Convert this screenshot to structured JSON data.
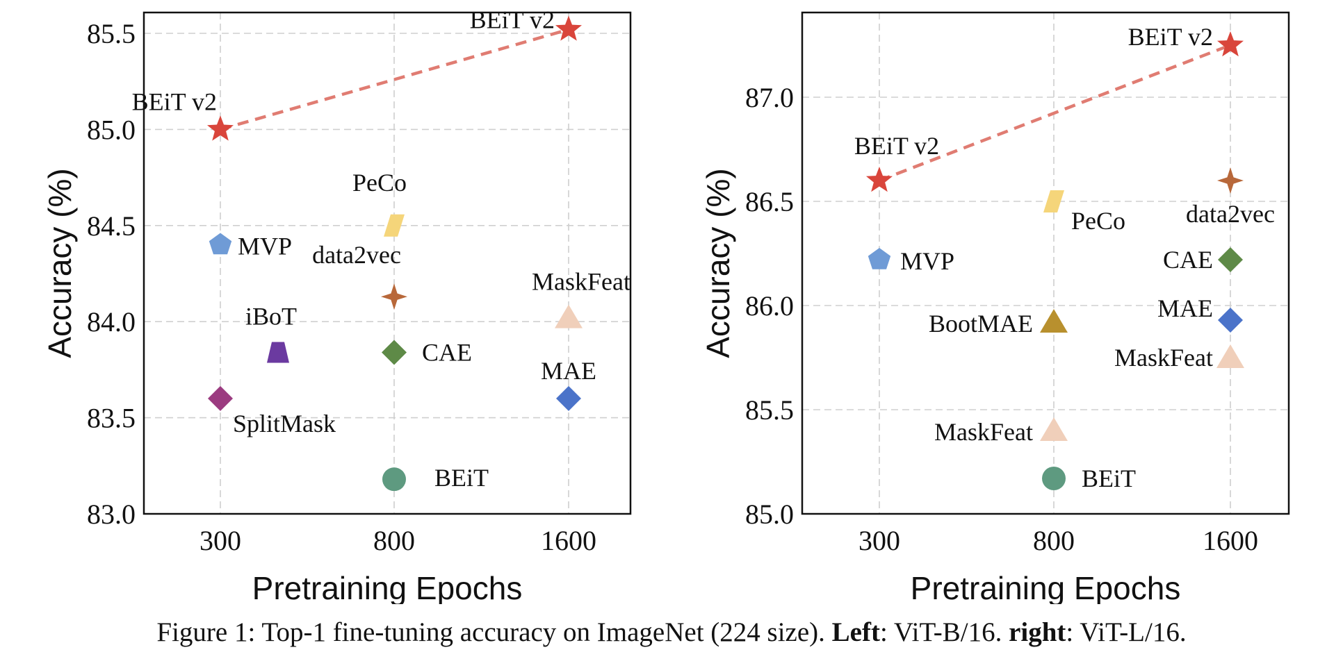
{
  "chart_data": [
    {
      "type": "scatter",
      "xlabel": "Pretraining Epochs",
      "ylabel": "Accuracy (%)",
      "x_ticks": [
        300,
        800,
        1600
      ],
      "y_ticks": [
        "83.0",
        "83.5",
        "84.0",
        "84.5",
        "85.0",
        "85.5"
      ],
      "ylim": [
        83.0,
        85.7
      ],
      "x_scale": "categorical-spaced",
      "grid": true,
      "trend_line": {
        "from": "BEiT v2 @300",
        "to": "BEiT v2 @1600",
        "color": "#e07c72",
        "style": "dashed"
      },
      "points": [
        {
          "label": "BEiT v2",
          "x": 300,
          "y": 85.0,
          "marker": "star",
          "color": "#d9453b"
        },
        {
          "label": "BEiT v2",
          "x": 1600,
          "y": 85.52,
          "marker": "star",
          "color": "#d9453b"
        },
        {
          "label": "MVP",
          "x": 300,
          "y": 84.4,
          "marker": "pentagon",
          "color": "#6f9bd6"
        },
        {
          "label": "SplitMask",
          "x": 300,
          "y": 83.6,
          "marker": "diamond",
          "color": "#9b3b80"
        },
        {
          "label": "iBoT",
          "x": 400,
          "y": 83.84,
          "marker": "trapezoid",
          "color": "#6b3aa0"
        },
        {
          "label": "PeCo",
          "x": 800,
          "y": 84.5,
          "marker": "parallelogram",
          "color": "#f5d57a"
        },
        {
          "label": "data2vec",
          "x": 800,
          "y": 84.13,
          "marker": "star4",
          "color": "#b8683a"
        },
        {
          "label": "CAE",
          "x": 800,
          "y": 83.84,
          "marker": "diamond",
          "color": "#5e8a47"
        },
        {
          "label": "BEiT",
          "x": 800,
          "y": 83.18,
          "marker": "circle",
          "color": "#5e9a80"
        },
        {
          "label": "MaskFeat",
          "x": 1600,
          "y": 84.02,
          "marker": "triangle",
          "color": "#f0cfba"
        },
        {
          "label": "MAE",
          "x": 1600,
          "y": 83.6,
          "marker": "diamond",
          "color": "#4b73c9"
        }
      ]
    },
    {
      "type": "scatter",
      "xlabel": "Pretraining Epochs",
      "ylabel": "Accuracy (%)",
      "x_ticks": [
        300,
        800,
        1600
      ],
      "y_ticks": [
        "85.0",
        "85.5",
        "86.0",
        "86.5",
        "87.0"
      ],
      "ylim": [
        85.0,
        87.3
      ],
      "x_scale": "categorical-spaced",
      "grid": true,
      "trend_line": {
        "from": "BEiT v2 @300",
        "to": "BEiT v2 @1600",
        "color": "#e07c72",
        "style": "dashed"
      },
      "points": [
        {
          "label": "BEiT v2",
          "x": 300,
          "y": 86.6,
          "marker": "star",
          "color": "#d9453b"
        },
        {
          "label": "BEiT v2",
          "x": 1600,
          "y": 87.25,
          "marker": "star",
          "color": "#d9453b"
        },
        {
          "label": "MVP",
          "x": 300,
          "y": 86.22,
          "marker": "pentagon",
          "color": "#6f9bd6"
        },
        {
          "label": "PeCo",
          "x": 800,
          "y": 86.5,
          "marker": "parallelogram",
          "color": "#f5d57a"
        },
        {
          "label": "BootMAE",
          "x": 800,
          "y": 85.92,
          "marker": "triangle",
          "color": "#b8902e"
        },
        {
          "label": "MaskFeat",
          "x": 800,
          "y": 85.4,
          "marker": "triangle",
          "color": "#f0cfba"
        },
        {
          "label": "BEiT",
          "x": 800,
          "y": 85.17,
          "marker": "circle",
          "color": "#5e9a80"
        },
        {
          "label": "data2vec",
          "x": 1600,
          "y": 86.6,
          "marker": "star4",
          "color": "#b8683a"
        },
        {
          "label": "CAE",
          "x": 1600,
          "y": 86.22,
          "marker": "diamond",
          "color": "#5e8a47"
        },
        {
          "label": "MAE",
          "x": 1600,
          "y": 85.93,
          "marker": "diamond",
          "color": "#4b73c9"
        },
        {
          "label": "MaskFeat",
          "x": 1600,
          "y": 85.75,
          "marker": "triangle",
          "color": "#f0cfba"
        }
      ]
    }
  ],
  "caption": {
    "prefix": "Figure 1: Top-1 fine-tuning accuracy on ImageNet (224 size). ",
    "left_label": "Left",
    "left_text": ": ViT-B/16. ",
    "right_label": "right",
    "right_text": ": ViT-L/16."
  }
}
